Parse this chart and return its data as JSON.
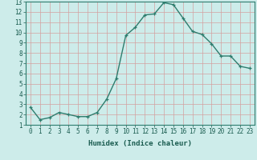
{
  "x": [
    0,
    1,
    2,
    3,
    4,
    5,
    6,
    7,
    8,
    9,
    10,
    11,
    12,
    13,
    14,
    15,
    16,
    17,
    18,
    19,
    20,
    21,
    22,
    23
  ],
  "y": [
    2.7,
    1.5,
    1.7,
    2.2,
    2.0,
    1.8,
    1.8,
    2.2,
    3.5,
    5.5,
    9.7,
    10.5,
    11.7,
    11.8,
    12.9,
    12.7,
    11.4,
    10.1,
    9.8,
    8.9,
    7.7,
    7.7,
    6.7,
    6.5
  ],
  "line_color": "#2e7d6e",
  "marker": "+",
  "marker_size": 3.5,
  "line_width": 1.0,
  "bg_color": "#cdecea",
  "grid_color": "#d4a0a0",
  "xlabel": "Humidex (Indice chaleur)",
  "xlim": [
    -0.5,
    23.5
  ],
  "ylim": [
    1,
    13
  ],
  "yticks": [
    1,
    2,
    3,
    4,
    5,
    6,
    7,
    8,
    9,
    10,
    11,
    12,
    13
  ],
  "xticks": [
    0,
    1,
    2,
    3,
    4,
    5,
    6,
    7,
    8,
    9,
    10,
    11,
    12,
    13,
    14,
    15,
    16,
    17,
    18,
    19,
    20,
    21,
    22,
    23
  ],
  "tick_label_size": 5.5,
  "xlabel_size": 6.5,
  "tick_color": "#1a5c50",
  "axis_color": "#1a5c50",
  "spine_color": "#2e7d6e"
}
